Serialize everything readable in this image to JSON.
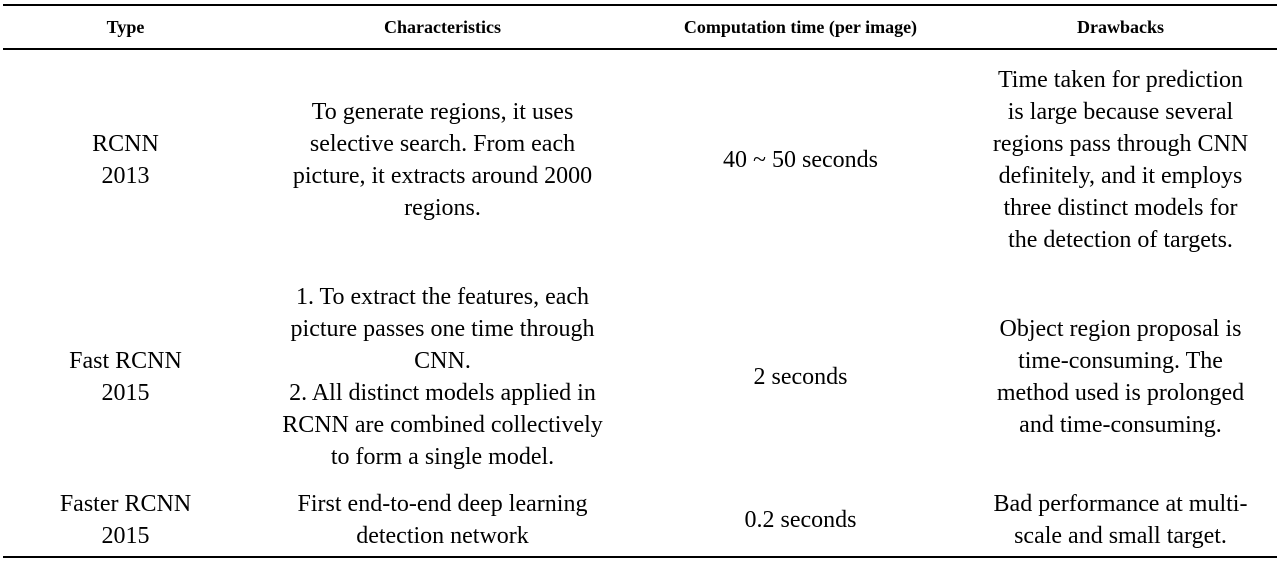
{
  "table": {
    "headers": [
      "Type",
      "Characteristics",
      "Computation time (per image)",
      "Drawbacks"
    ],
    "rows": [
      {
        "type_lines": [
          "RCNN",
          "2013"
        ],
        "characteristics_lines": [
          "To generate regions, it uses",
          "selective search. From each",
          "picture, it extracts around 2000",
          "regions."
        ],
        "computation_time": "40 ~ 50 seconds",
        "drawbacks_lines": [
          "Time taken for prediction",
          "is large because several",
          "regions pass through CNN",
          "definitely, and it employs",
          "three distinct models for",
          "the detection of targets."
        ]
      },
      {
        "type_lines": [
          "Fast RCNN",
          "2015"
        ],
        "characteristics_lines": [
          "1. To extract the features, each",
          "picture passes one time through",
          "CNN.",
          "2. All distinct models applied in",
          "RCNN are combined collectively",
          "to form a single model."
        ],
        "computation_time": "2 seconds",
        "drawbacks_lines": [
          "Object region proposal is",
          "time-consuming. The",
          "method used is prolonged",
          "and time-consuming."
        ]
      },
      {
        "type_lines": [
          "Faster RCNN",
          "2015"
        ],
        "characteristics_lines": [
          "First end-to-end deep learning",
          "detection network"
        ],
        "computation_time": "0.2 seconds",
        "drawbacks_lines": [
          "Bad performance at multi-",
          "scale and small target."
        ]
      }
    ]
  }
}
